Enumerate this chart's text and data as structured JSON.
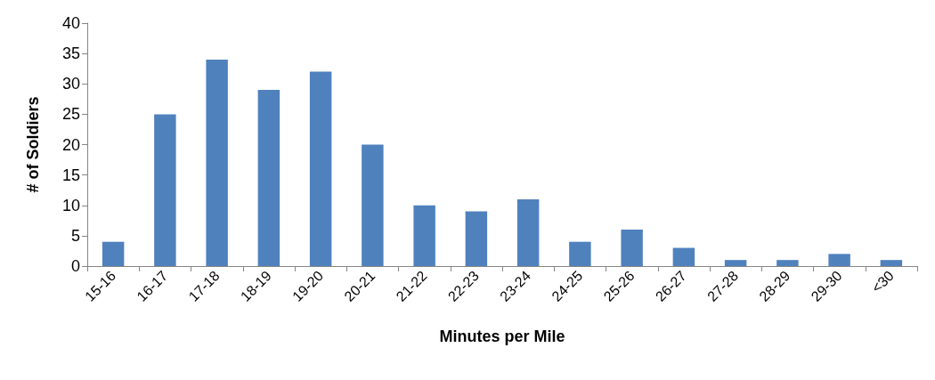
{
  "chart_data": {
    "type": "bar",
    "xlabel": "Minutes per Mile",
    "ylabel": "# of Soldiers",
    "categories": [
      "15-16",
      "16-17",
      "17-18",
      "18-19",
      "19-20",
      "20-21",
      "21-22",
      "22-23",
      "23-24",
      "24-25",
      "25-26",
      "26-27",
      "27-28",
      "28-29",
      "29-30",
      "<30"
    ],
    "values": [
      4,
      25,
      34,
      29,
      32,
      20,
      10,
      9,
      11,
      4,
      6,
      3,
      1,
      1,
      2,
      1
    ],
    "color": "#4f81bd",
    "ylim": [
      0,
      40
    ],
    "yticks": [
      0,
      5,
      10,
      15,
      20,
      25,
      30,
      35,
      40
    ],
    "grid": false
  }
}
